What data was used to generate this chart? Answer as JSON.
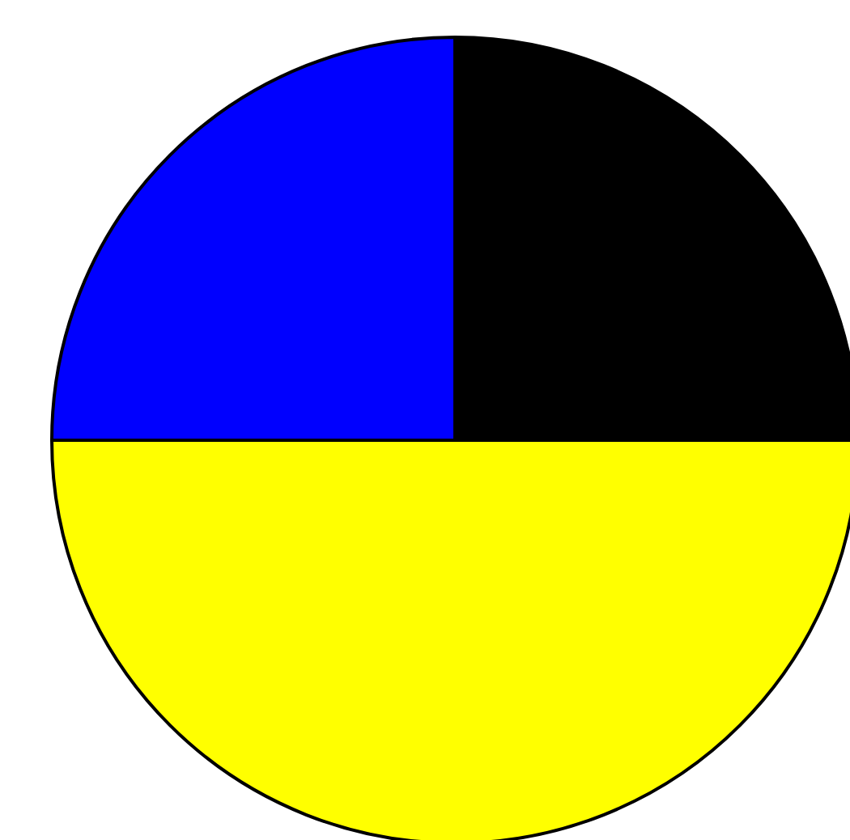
{
  "chart_data": {
    "type": "pie",
    "categories": [
      null,
      null,
      null
    ],
    "values": [
      25,
      50,
      25
    ],
    "colors": [
      "#0000ff",
      "#ffff00",
      "#000000"
    ]
  }
}
